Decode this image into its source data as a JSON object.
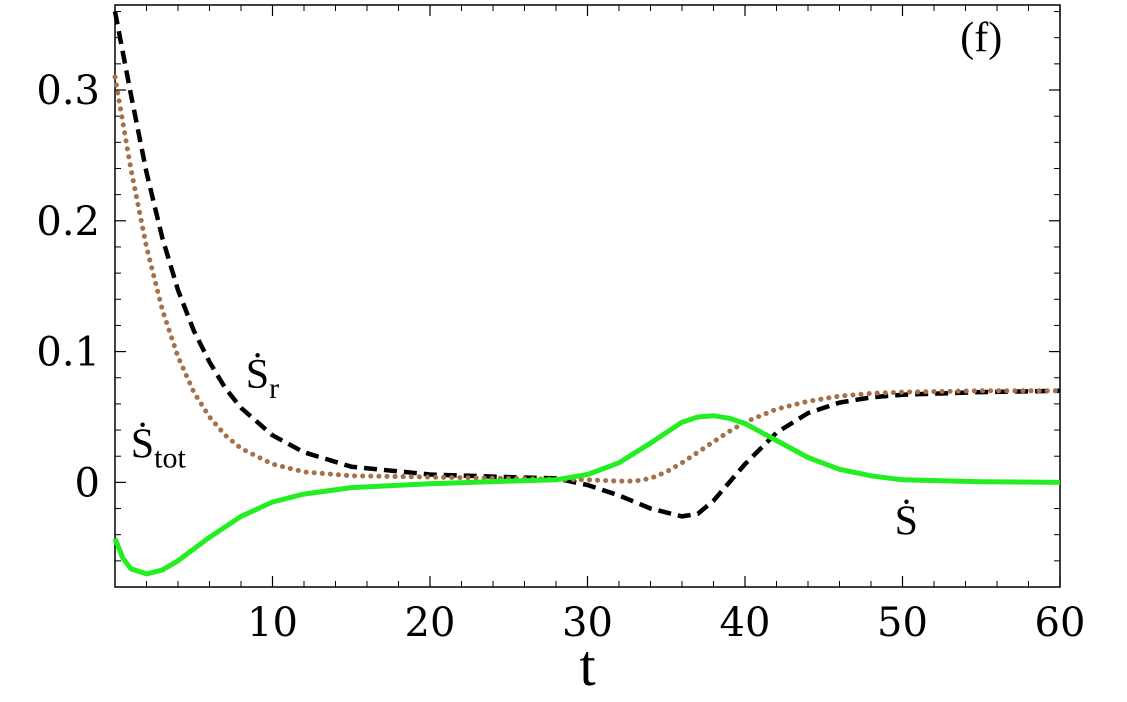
{
  "chart_data": {
    "type": "line",
    "title": "",
    "xlabel": "t",
    "ylabel": "",
    "xlim": [
      0,
      60
    ],
    "ylim": [
      -0.08,
      0.365
    ],
    "xticks": [
      10,
      20,
      30,
      40,
      50,
      60
    ],
    "xtick_labels": [
      "10",
      "20",
      "30",
      "40",
      "50",
      "60"
    ],
    "yticks": [
      0,
      0.1,
      0.2,
      0.3
    ],
    "ytick_labels": [
      "0",
      "0.1",
      "0.2",
      "0.3"
    ],
    "grid": false,
    "panel_label": "(f)",
    "series": [
      {
        "label": "Ṡr",
        "style": "dashed",
        "color": "#000000",
        "x": [
          0,
          1,
          2,
          3,
          4,
          5,
          6,
          7,
          8,
          10,
          12,
          15,
          20,
          25,
          28,
          30,
          32,
          34,
          36,
          37,
          38,
          40,
          42,
          44,
          46,
          48,
          50,
          55,
          60
        ],
        "y": [
          0.36,
          0.297,
          0.237,
          0.187,
          0.147,
          0.116,
          0.092,
          0.072,
          0.057,
          0.036,
          0.023,
          0.012,
          0.006,
          0.004,
          0.003,
          -0.002,
          -0.01,
          -0.02,
          -0.026,
          -0.024,
          -0.014,
          0.014,
          0.038,
          0.053,
          0.061,
          0.065,
          0.067,
          0.069,
          0.07
        ]
      },
      {
        "label": "Ṡtot",
        "style": "dotted",
        "color": "#a5704a",
        "x": [
          0,
          1,
          2,
          3,
          4,
          5,
          6,
          7,
          8,
          10,
          12,
          15,
          20,
          25,
          30,
          32,
          33,
          34,
          35,
          36,
          37,
          38,
          39,
          40,
          42,
          44,
          46,
          48,
          50,
          55,
          60
        ],
        "y": [
          0.31,
          0.24,
          0.18,
          0.132,
          0.096,
          0.069,
          0.05,
          0.036,
          0.026,
          0.014,
          0.008,
          0.005,
          0.004,
          0.003,
          0.002,
          0.001,
          0.001,
          0.003,
          0.008,
          0.015,
          0.023,
          0.031,
          0.039,
          0.046,
          0.056,
          0.062,
          0.066,
          0.068,
          0.069,
          0.07,
          0.07
        ]
      },
      {
        "label": "Ṡ",
        "style": "solid",
        "color": "#22ee22",
        "x": [
          0,
          0.5,
          1,
          2,
          3,
          4,
          6,
          8,
          10,
          12,
          15,
          20,
          25,
          28,
          30,
          32,
          34,
          36,
          37,
          38,
          39,
          40,
          42,
          44,
          46,
          48,
          50,
          55,
          60
        ],
        "y": [
          -0.043,
          -0.058,
          -0.066,
          -0.07,
          -0.067,
          -0.06,
          -0.042,
          -0.026,
          -0.015,
          -0.009,
          -0.004,
          -0.001,
          0.001,
          0.002,
          0.006,
          0.015,
          0.03,
          0.046,
          0.05,
          0.051,
          0.049,
          0.045,
          0.032,
          0.019,
          0.01,
          0.005,
          0.002,
          0.0005,
          0.0
        ]
      }
    ],
    "annotations": {
      "s_r": {
        "text": "Ṡ",
        "sub": "r",
        "x": 8.3,
        "y": 0.072
      },
      "s_tot": {
        "text": "Ṡ",
        "sub": "tot",
        "x": 1.0,
        "y": 0.019
      },
      "s_dot": {
        "text": "Ṡ",
        "x": 49.5,
        "y": -0.04
      }
    }
  }
}
